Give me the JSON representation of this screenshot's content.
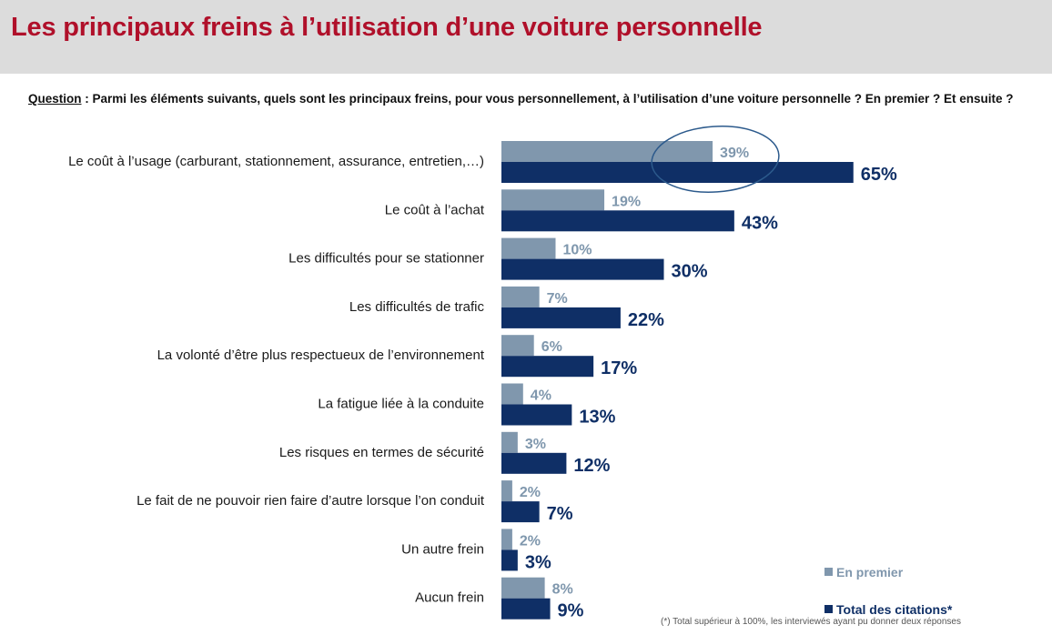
{
  "title": "Les principaux freins à l’utilisation d’une voiture personnelle",
  "question": {
    "label": "Question",
    "separator": " :  ",
    "text": "Parmi les éléments suivants, quels sont les principaux freins, pour vous personnellement, à l’utilisation d’une voiture personnelle ? En premier ? Et ensuite ?"
  },
  "footnote": "(*) Total supérieur à 100%, les interviewés ayant pu donner deux réponses",
  "colors": {
    "first": "#8097ad",
    "total": "#0f2f66",
    "title": "#b0102a",
    "header": "#dcdcdc"
  },
  "chart_data": {
    "type": "bar",
    "orientation": "horizontal",
    "categories": [
      "Le coût à l’usage (carburant, stationnement, assurance, entretien,…)",
      "Le coût à l’achat",
      "Les difficultés pour se stationner",
      "Les difficultés de trafic",
      "La volonté d’être plus respectueux de l’environnement",
      "La fatigue liée à la conduite",
      "Les risques en termes de sécurité",
      "Le fait de ne pouvoir rien faire d’autre lorsque l’on conduit",
      "Un autre frein",
      "Aucun frein"
    ],
    "series": [
      {
        "name": "En premier",
        "values": [
          39,
          19,
          10,
          7,
          6,
          4,
          3,
          2,
          2,
          8
        ],
        "labels": [
          "39%",
          "19%",
          "10%",
          "7%",
          "6%",
          "4%",
          "3%",
          "2%",
          "2%",
          "8%"
        ]
      },
      {
        "name": "Total des citations*",
        "values": [
          65,
          43,
          30,
          22,
          17,
          13,
          12,
          7,
          3,
          9
        ],
        "labels": [
          "65%",
          "43%",
          "30%",
          "22%",
          "17%",
          "13%",
          "12%",
          "7%",
          "3%",
          "9%"
        ]
      }
    ],
    "xlim": [
      0,
      100
    ],
    "legend_position": "bottom-right",
    "highlight": "ellipse around 39% / 65% of the first category"
  }
}
